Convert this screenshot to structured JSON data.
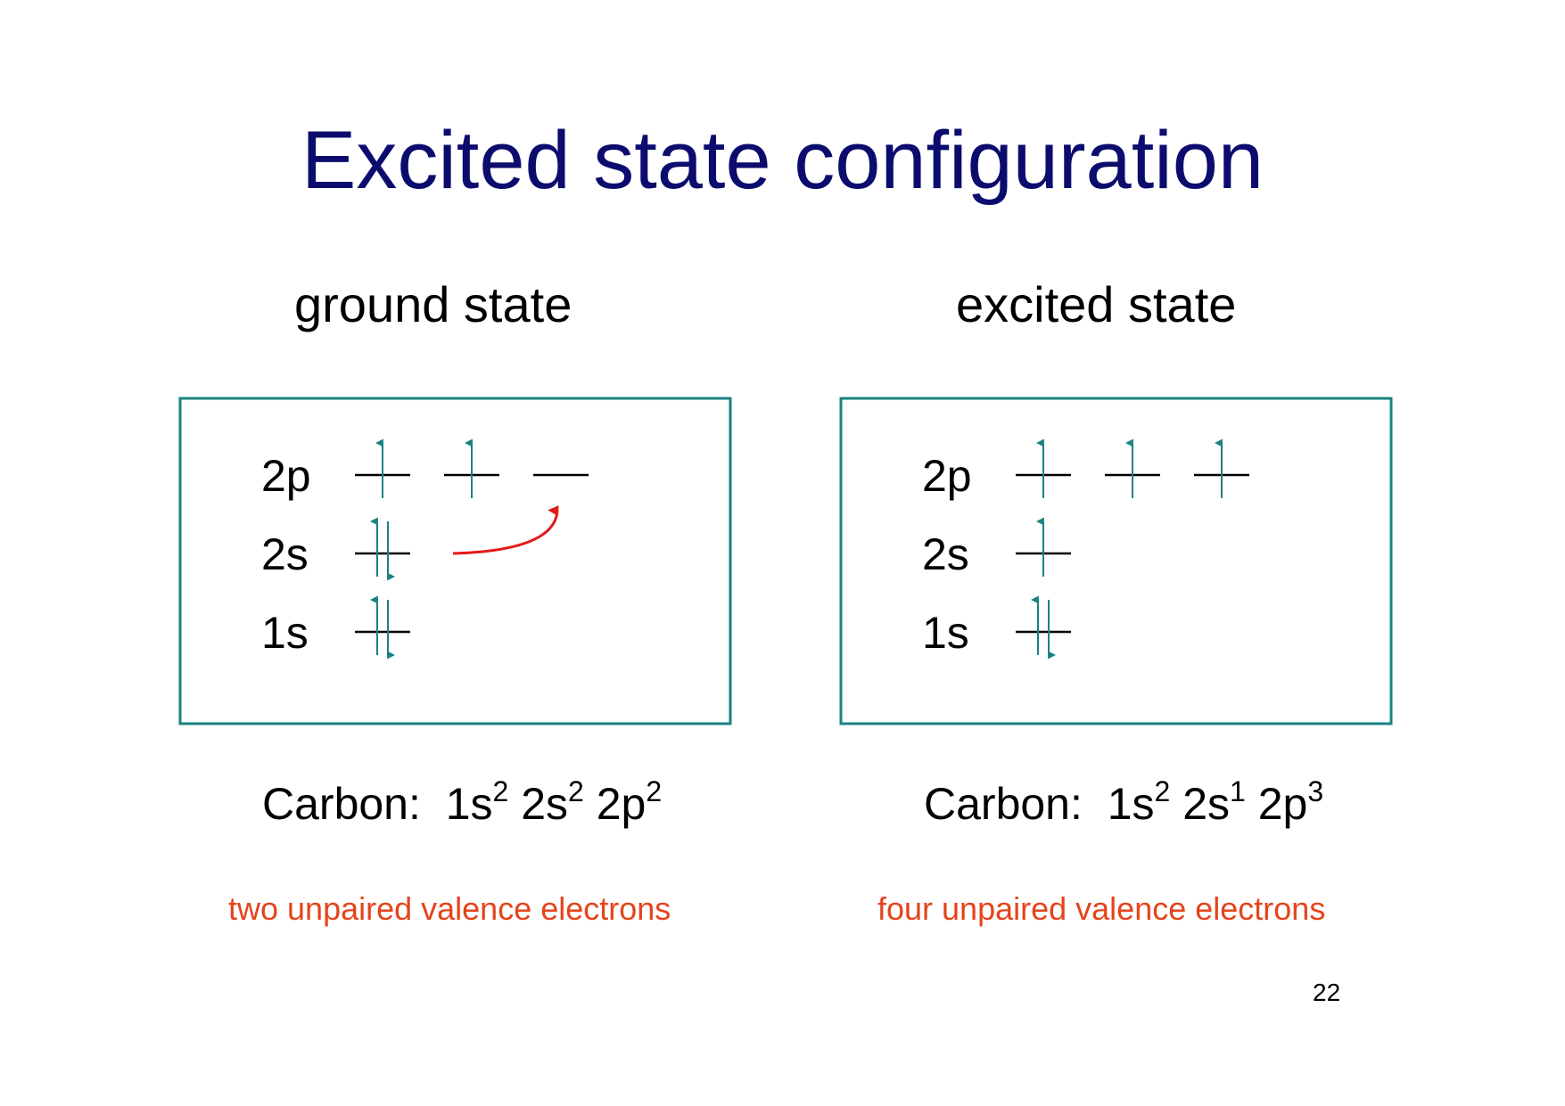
{
  "slide": {
    "title": "Excited state configuration",
    "page_number": "22"
  },
  "colors": {
    "title": "#0c0c6e",
    "box_border": "#1a8282",
    "arrow": "#1a8282",
    "promotion_arrow": "#e31b1b",
    "note": "#e4441b"
  },
  "panels": [
    {
      "heading": "ground state",
      "levels": [
        {
          "label": "2p",
          "orbitals": [
            [
              "up"
            ],
            [
              "up"
            ],
            []
          ]
        },
        {
          "label": "2s",
          "orbitals": [
            [
              "up",
              "down"
            ]
          ]
        },
        {
          "label": "1s",
          "orbitals": [
            [
              "up",
              "down"
            ]
          ]
        }
      ],
      "promotion": {
        "from": "2s",
        "to": "2p",
        "to_orbital": 3
      },
      "config": {
        "element": "Carbon:",
        "terms": [
          {
            "orbital": "1s",
            "count": "2"
          },
          {
            "orbital": "2s",
            "count": "2"
          },
          {
            "orbital": "2p",
            "count": "2"
          }
        ]
      },
      "note": "two unpaired valence electrons"
    },
    {
      "heading": "excited state",
      "levels": [
        {
          "label": "2p",
          "orbitals": [
            [
              "up"
            ],
            [
              "up"
            ],
            [
              "up"
            ]
          ]
        },
        {
          "label": "2s",
          "orbitals": [
            [
              "up"
            ]
          ]
        },
        {
          "label": "1s",
          "orbitals": [
            [
              "up",
              "down"
            ]
          ]
        }
      ],
      "config": {
        "element": "Carbon:",
        "terms": [
          {
            "orbital": "1s",
            "count": "2"
          },
          {
            "orbital": "2s",
            "count": "1"
          },
          {
            "orbital": "2p",
            "count": "3"
          }
        ]
      },
      "note": "four unpaired valence electrons"
    }
  ]
}
